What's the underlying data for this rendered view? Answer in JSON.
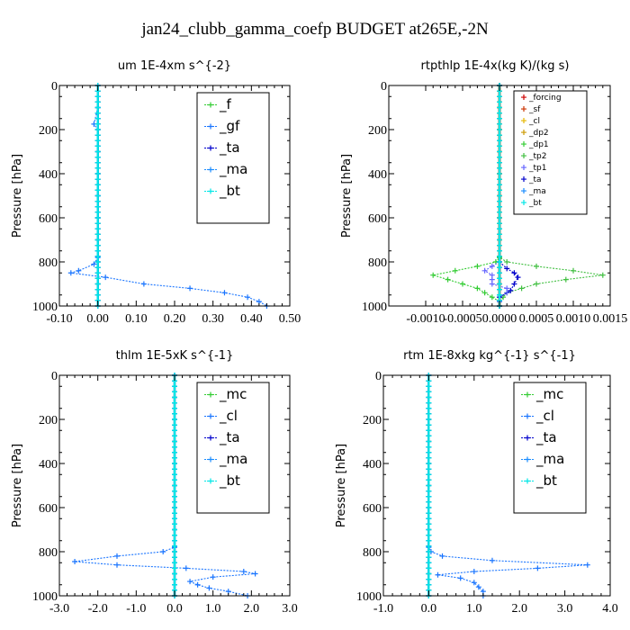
{
  "figure": {
    "title": "jan24_clubb_gamma_coefp  BUDGET at265E,-2N"
  },
  "chart_data": [
    {
      "type": "line",
      "title": "um   1E-4xm s^{-2}",
      "ylabel": "Pressure [hPa]",
      "xlim": [
        -0.1,
        0.5
      ],
      "ylim": [
        1000,
        0
      ],
      "xticks": [
        "-0.10",
        "0.00",
        "0.10",
        "0.20",
        "0.30",
        "0.40",
        "0.50"
      ],
      "xtick_values": [
        -0.1,
        0.0,
        0.1,
        0.2,
        0.3,
        0.4,
        0.5
      ],
      "yticks": [
        "0",
        "200",
        "400",
        "600",
        "800",
        "1000"
      ],
      "ytick_values": [
        0,
        200,
        400,
        600,
        800,
        1000
      ],
      "legend": [
        "_f",
        "_gf",
        "_ta",
        "_ma",
        "_bt"
      ],
      "series": [
        {
          "name": "_f",
          "color": "#33cc33",
          "y": [
            0,
            100,
            200,
            300,
            400,
            500,
            600,
            700,
            800,
            850,
            900,
            950,
            1000
          ],
          "x": [
            0,
            0,
            0,
            0,
            0,
            0,
            0,
            0,
            0,
            0,
            0,
            0,
            0
          ]
        },
        {
          "name": "_gf",
          "color": "#1a75ff",
          "y": [
            0,
            100,
            175,
            200,
            300,
            400,
            500,
            600,
            700,
            780,
            810,
            840,
            850,
            870,
            900,
            920,
            940,
            960,
            980,
            1000
          ],
          "x": [
            0,
            0,
            -0.01,
            0,
            0,
            0,
            0,
            0,
            0,
            0,
            -0.01,
            -0.05,
            -0.07,
            0.02,
            0.12,
            0.24,
            0.33,
            0.39,
            0.42,
            0.44
          ]
        },
        {
          "name": "_ta",
          "color": "#0000cc",
          "y": [
            0,
            100,
            200,
            300,
            400,
            500,
            600,
            700,
            800,
            850,
            900,
            950,
            1000
          ],
          "x": [
            0,
            0,
            0,
            0,
            0,
            0,
            0,
            0,
            0,
            0,
            0,
            0,
            0
          ]
        },
        {
          "name": "_ma",
          "color": "#1a8cff",
          "y": [
            0,
            100,
            200,
            300,
            400,
            500,
            600,
            700,
            800,
            850,
            900,
            950,
            1000
          ],
          "x": [
            0,
            0,
            0,
            0,
            0,
            0,
            0,
            0,
            0,
            0,
            0,
            0,
            0
          ]
        },
        {
          "name": "_bt",
          "color": "#00e6e6",
          "y": [
            0,
            100,
            200,
            300,
            400,
            500,
            600,
            700,
            800,
            850,
            900,
            950,
            1000
          ],
          "x": [
            0,
            0,
            0,
            0,
            0,
            0,
            0,
            0,
            0,
            0,
            0,
            0,
            0
          ]
        }
      ]
    },
    {
      "type": "line",
      "title": "rtpthlp   1E-4x(kg K)/(kg s)",
      "ylabel": "Pressure [hPa]",
      "xlim": [
        -0.0015,
        0.0015
      ],
      "ylim": [
        1000,
        0
      ],
      "xticks": [
        "-0.0010",
        "-0.0005",
        "0.0000",
        "0.0005",
        "0.0010",
        "0.0015"
      ],
      "xtick_values": [
        -0.001,
        -0.0005,
        0.0,
        0.0005,
        0.001,
        0.0015
      ],
      "yticks": [
        "0",
        "200",
        "400",
        "600",
        "800",
        "1000"
      ],
      "ytick_values": [
        0,
        200,
        400,
        600,
        800,
        1000
      ],
      "legend": [
        "_forcing",
        "_sf",
        "_cl",
        "_dp2",
        "_dp1",
        "_tp2",
        "_tp1",
        "_ta",
        "_ma",
        "_bt"
      ],
      "series": [
        {
          "name": "_forcing",
          "color": "#cc0000",
          "y": [
            0,
            200,
            400,
            600,
            800,
            1000
          ],
          "x": [
            0,
            0,
            0,
            0,
            0,
            0
          ]
        },
        {
          "name": "_sf",
          "color": "#cc3300",
          "y": [
            0,
            200,
            400,
            600,
            800,
            1000
          ],
          "x": [
            0,
            0,
            0,
            0,
            0,
            0
          ]
        },
        {
          "name": "_cl",
          "color": "#e6b800",
          "y": [
            0,
            200,
            400,
            600,
            800,
            1000
          ],
          "x": [
            0,
            0,
            0,
            0,
            0,
            0
          ]
        },
        {
          "name": "_dp2",
          "color": "#cc9900",
          "y": [
            0,
            200,
            400,
            600,
            800,
            1000
          ],
          "x": [
            0,
            0,
            0,
            0,
            0,
            0
          ]
        },
        {
          "name": "_dp1",
          "color": "#33cc33",
          "y": [
            0,
            780,
            800,
            820,
            840,
            860,
            880,
            900,
            920,
            940,
            960,
            980,
            1000
          ],
          "x": [
            0,
            0,
            -5e-05,
            -0.0003,
            -0.0006,
            -0.0009,
            -0.0007,
            -0.0005,
            -0.0003,
            -0.0002,
            -0.0001,
            0,
            0
          ]
        },
        {
          "name": "_tp2",
          "color": "#40bf40",
          "y": [
            0,
            780,
            800,
            820,
            840,
            860,
            880,
            900,
            920,
            940,
            960,
            980,
            1000
          ],
          "x": [
            0,
            0,
            0.0001,
            0.0005,
            0.001,
            0.0014,
            0.0009,
            0.0005,
            0.0003,
            0.0001,
            5e-05,
            0,
            0
          ]
        },
        {
          "name": "_tp1",
          "color": "#6666ff",
          "y": [
            0,
            800,
            820,
            840,
            860,
            880,
            900,
            920,
            940,
            960,
            980,
            1000
          ],
          "x": [
            0,
            0,
            -0.0001,
            -0.0002,
            -0.0001,
            -0.0001,
            -0.0001,
            0.0001,
            0.0001,
            0,
            0,
            0
          ]
        },
        {
          "name": "_ta",
          "color": "#0000cc",
          "y": [
            0,
            800,
            830,
            850,
            870,
            900,
            930,
            960,
            1000
          ],
          "x": [
            0,
            0,
            0.0001,
            0.0002,
            0.00025,
            0.0002,
            0.00015,
            0,
            0
          ]
        },
        {
          "name": "_ma",
          "color": "#1a8cff",
          "y": [
            0,
            200,
            400,
            600,
            800,
            1000
          ],
          "x": [
            0,
            0,
            0,
            0,
            0,
            0
          ]
        },
        {
          "name": "_bt",
          "color": "#00e6e6",
          "y": [
            0,
            200,
            400,
            600,
            800,
            1000
          ],
          "x": [
            0,
            0,
            0,
            0,
            0,
            0
          ]
        }
      ]
    },
    {
      "type": "line",
      "title": "thlm   1E-5xK s^{-1}",
      "ylabel": "Pressure [hPa]",
      "xlim": [
        -3.0,
        3.0
      ],
      "ylim": [
        1000,
        0
      ],
      "xticks": [
        "-3.0",
        "-2.0",
        "-1.0",
        "0.0",
        "1.0",
        "2.0",
        "3.0"
      ],
      "xtick_values": [
        -3,
        -2,
        -1,
        0,
        1,
        2,
        3
      ],
      "yticks": [
        "0",
        "200",
        "400",
        "600",
        "800",
        "1000"
      ],
      "ytick_values": [
        0,
        200,
        400,
        600,
        800,
        1000
      ],
      "legend": [
        "_mc",
        "_cl",
        "_ta",
        "_ma",
        "_bt"
      ],
      "series": [
        {
          "name": "_mc",
          "color": "#33cc33",
          "y": [
            0,
            100,
            200,
            300,
            400,
            500,
            600,
            700,
            800,
            850,
            900,
            950,
            1000
          ],
          "x": [
            0,
            0,
            0,
            0,
            0,
            0,
            0,
            0,
            0,
            0,
            0,
            0,
            0
          ]
        },
        {
          "name": "_cl",
          "color": "#1a75ff",
          "y": [
            0,
            780,
            800,
            820,
            845,
            860,
            875,
            890,
            900,
            915,
            935,
            950,
            965,
            980,
            1000
          ],
          "x": [
            0,
            0,
            -0.3,
            -1.5,
            -2.6,
            -1.5,
            0.3,
            1.8,
            2.1,
            1.0,
            0.4,
            0.6,
            0.9,
            1.4,
            1.9
          ]
        },
        {
          "name": "_ta",
          "color": "#0000cc",
          "y": [
            0,
            100,
            200,
            300,
            400,
            500,
            600,
            700,
            800,
            850,
            900,
            950,
            1000
          ],
          "x": [
            0,
            0,
            0,
            0,
            0,
            0,
            0,
            0,
            0,
            0,
            0,
            0,
            0
          ]
        },
        {
          "name": "_ma",
          "color": "#1a8cff",
          "y": [
            0,
            100,
            200,
            300,
            400,
            500,
            600,
            700,
            800,
            850,
            900,
            950,
            1000
          ],
          "x": [
            0,
            0,
            0,
            0,
            0,
            0,
            0,
            0,
            0,
            0,
            0,
            0,
            0
          ]
        },
        {
          "name": "_bt",
          "color": "#00e6e6",
          "y": [
            0,
            100,
            200,
            300,
            400,
            500,
            600,
            700,
            800,
            850,
            900,
            950,
            1000
          ],
          "x": [
            0,
            0,
            0,
            0,
            0,
            0,
            0,
            0,
            0,
            0,
            0,
            0,
            0
          ]
        }
      ]
    },
    {
      "type": "line",
      "title": "rtm   1E-8xkg kg^{-1} s^{-1}",
      "ylabel": "Pressure [hPa]",
      "xlim": [
        -1.0,
        4.0
      ],
      "ylim": [
        1000,
        0
      ],
      "xticks": [
        "-1.0",
        "0.0",
        "1.0",
        "2.0",
        "3.0",
        "4.0"
      ],
      "xtick_values": [
        -1,
        0,
        1,
        2,
        3,
        4
      ],
      "yticks": [
        "0",
        "200",
        "400",
        "600",
        "800",
        "1000"
      ],
      "ytick_values": [
        0,
        200,
        400,
        600,
        800,
        1000
      ],
      "legend": [
        "_mc",
        "_cl",
        "_ta",
        "_ma",
        "_bt"
      ],
      "series": [
        {
          "name": "_mc",
          "color": "#33cc33",
          "y": [
            0,
            100,
            200,
            300,
            400,
            500,
            600,
            700,
            800,
            850,
            900,
            950,
            1000
          ],
          "x": [
            0,
            0,
            0,
            0,
            0,
            0,
            0,
            0,
            0,
            0,
            0,
            0,
            0
          ]
        },
        {
          "name": "_cl",
          "color": "#1a75ff",
          "y": [
            0,
            780,
            800,
            820,
            840,
            860,
            875,
            890,
            905,
            920,
            940,
            960,
            980,
            1000
          ],
          "x": [
            0,
            0,
            0.05,
            0.3,
            1.4,
            3.5,
            2.4,
            1.0,
            0.2,
            0.7,
            1.0,
            1.1,
            1.2,
            1.2
          ]
        },
        {
          "name": "_ta",
          "color": "#0000cc",
          "y": [
            0,
            100,
            200,
            300,
            400,
            500,
            600,
            700,
            800,
            850,
            900,
            950,
            1000
          ],
          "x": [
            0,
            0,
            0,
            0,
            0,
            0,
            0,
            0,
            0,
            0,
            0,
            0,
            0
          ]
        },
        {
          "name": "_ma",
          "color": "#1a8cff",
          "y": [
            0,
            100,
            200,
            300,
            400,
            500,
            600,
            700,
            800,
            850,
            900,
            950,
            1000
          ],
          "x": [
            0,
            0,
            0,
            0,
            0,
            0,
            0,
            0,
            0,
            0,
            0,
            0,
            0
          ]
        },
        {
          "name": "_bt",
          "color": "#00e6e6",
          "y": [
            0,
            100,
            200,
            300,
            400,
            500,
            600,
            700,
            800,
            850,
            900,
            950,
            1000
          ],
          "x": [
            0,
            0,
            0,
            0,
            0,
            0,
            0,
            0,
            0,
            0,
            0,
            0,
            0
          ]
        }
      ]
    }
  ]
}
